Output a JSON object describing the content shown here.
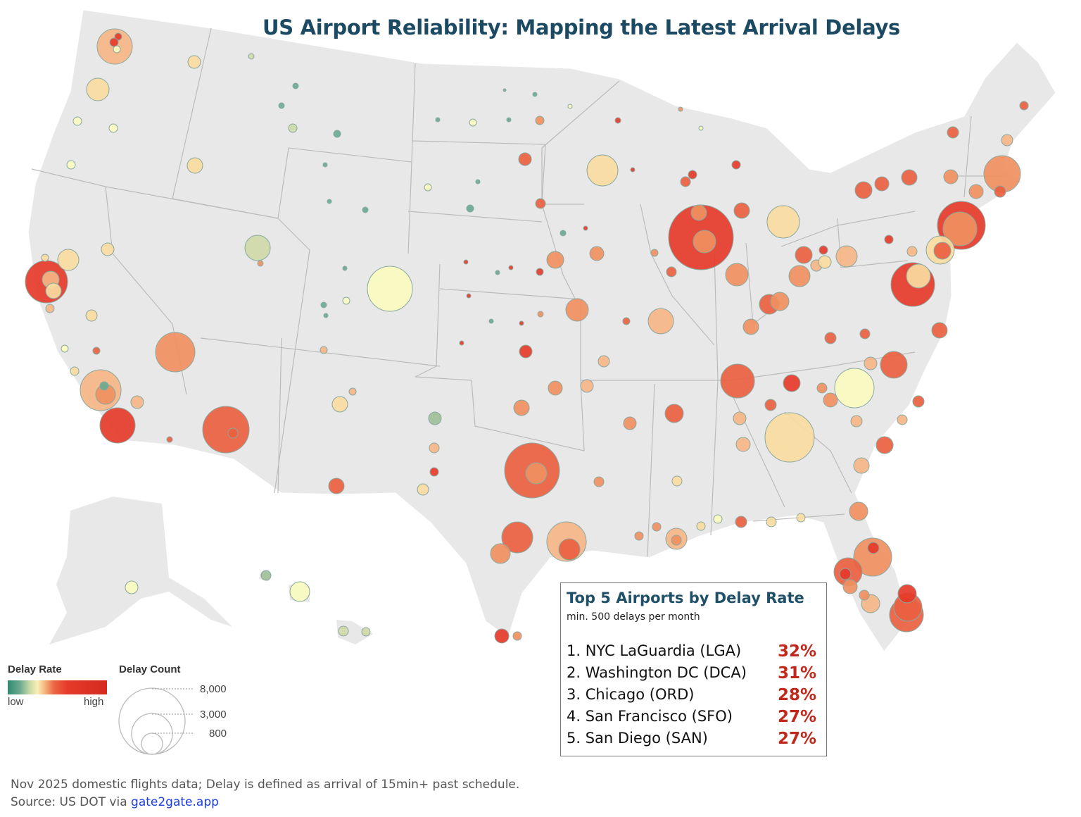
{
  "title": "US Airport Reliability: Mapping the Latest Arrival Delays",
  "top5": {
    "title": "Top 5 Airports by Delay Rate",
    "subtitle": "min. 500 delays per month",
    "items": [
      {
        "label": "1. NYC LaGuardia (LGA)",
        "rate": "32%"
      },
      {
        "label": "2. Washington DC (DCA)",
        "rate": "31%"
      },
      {
        "label": "3. Chicago (ORD)",
        "rate": "28%"
      },
      {
        "label": "4. San Francisco (SFO)",
        "rate": "27%"
      },
      {
        "label": "5. San Diego (SAN)",
        "rate": "27%"
      }
    ]
  },
  "legend": {
    "rate_title": "Delay Rate",
    "rate_low": "low",
    "rate_high": "high",
    "rate_colors": [
      "#2e8a70",
      "#f8f0b8",
      "#e53a2a"
    ],
    "count_title": "Delay Count",
    "count_values": [
      "8,000",
      "3,000",
      "800"
    ]
  },
  "footer": {
    "note": "Nov 2025 domestic flights data; Delay is defined as arrival of 15min+ past schedule.",
    "source_prefix": "Source: US DOT via ",
    "source_link": "gate2gate.app"
  },
  "colors": {
    "title": "#1c4a63",
    "land": "#e8e8e8",
    "state_border": "#b8b8b8",
    "highlight": "#c0281c"
  }
}
